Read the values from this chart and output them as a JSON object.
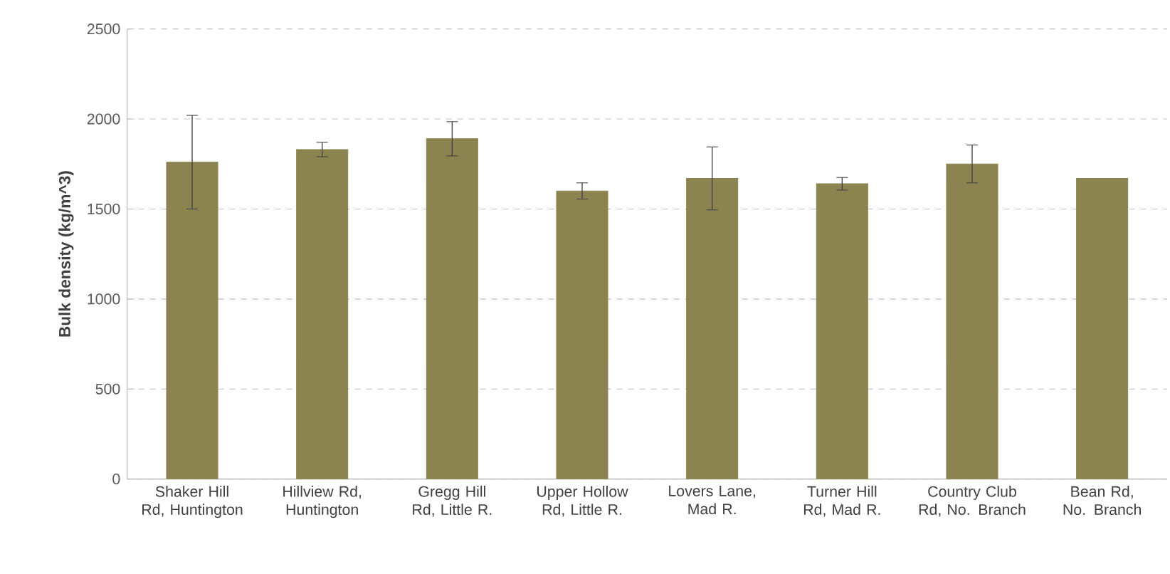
{
  "chart_data": {
    "type": "bar",
    "ylabel": "Bulk density (kg/m^3)",
    "categories": [
      "Shaker Hill Rd, Huntington",
      "Hillview Rd, Huntington",
      "Gregg Hill Rd, Little R.",
      "Upper Hollow Rd, Little R.",
      "Lovers Lane, Mad R.",
      "Turner Hill Rd, Mad R.",
      "Country Club Rd, No. Branch",
      "Bean Rd, No. Branch"
    ],
    "values": [
      1760,
      1830,
      1890,
      1600,
      1670,
      1640,
      1750,
      1670
    ],
    "errors": [
      260,
      40,
      95,
      45,
      175,
      35,
      105,
      null
    ],
    "color": "#8c8450",
    "ylim": [
      0,
      2500
    ],
    "yticks": [
      0,
      500,
      1000,
      1500,
      2000,
      2500
    ],
    "grid": "y"
  }
}
